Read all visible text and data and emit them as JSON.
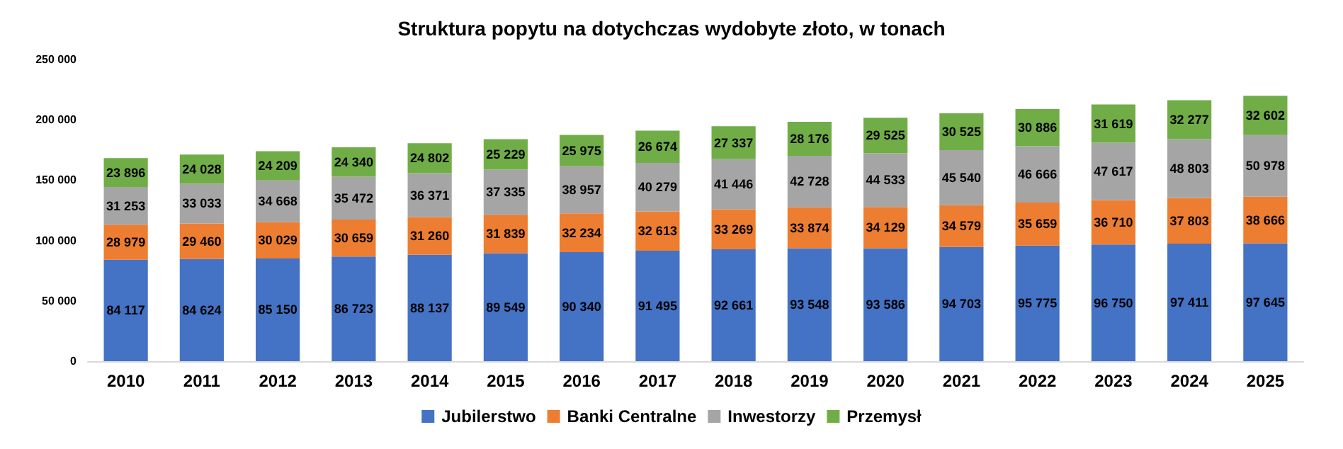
{
  "chart_data": {
    "type": "bar",
    "stacked": true,
    "title": "Struktura popytu na dotychczas wydobyte złoto, w tonach",
    "categories": [
      "2010",
      "2011",
      "2012",
      "2013",
      "2014",
      "2015",
      "2016",
      "2017",
      "2018",
      "2019",
      "2020",
      "2021",
      "2022",
      "2023",
      "2024",
      "2025"
    ],
    "series": [
      {
        "name": "Jubilerstwo",
        "color": "#4472c4",
        "values": [
          84117,
          84624,
          85150,
          86723,
          88137,
          89549,
          90340,
          91495,
          92661,
          93548,
          93586,
          94703,
          95775,
          96750,
          97411,
          97645
        ],
        "value_labels": [
          "84 117",
          "84 624",
          "85 150",
          "86 723",
          "88 137",
          "89 549",
          "90 340",
          "91 495",
          "92 661",
          "93 548",
          "93 586",
          "94 703",
          "95 775",
          "96 750",
          "97 411",
          "97 645"
        ]
      },
      {
        "name": "Banki Centralne",
        "color": "#ed7d31",
        "values": [
          28979,
          29460,
          30029,
          30659,
          31260,
          31839,
          32234,
          32613,
          33269,
          33874,
          34129,
          34579,
          35659,
          36710,
          37803,
          38666
        ],
        "value_labels": [
          "28 979",
          "29 460",
          "30 029",
          "30 659",
          "31 260",
          "31 839",
          "32 234",
          "32 613",
          "33 269",
          "33 874",
          "34 129",
          "34 579",
          "35 659",
          "36 710",
          "37 803",
          "38 666"
        ]
      },
      {
        "name": "Inwestorzy",
        "color": "#a5a5a5",
        "values": [
          31253,
          33033,
          34668,
          35472,
          36371,
          37335,
          38957,
          40279,
          41446,
          42728,
          44533,
          45540,
          46666,
          47617,
          48803,
          50978
        ],
        "value_labels": [
          "31 253",
          "33 033",
          "34 668",
          "35 472",
          "36 371",
          "37 335",
          "38 957",
          "40 279",
          "41 446",
          "42 728",
          "44 533",
          "45 540",
          "46 666",
          "47 617",
          "48 803",
          "50 978"
        ]
      },
      {
        "name": "Przemysł",
        "color": "#70ad47",
        "values": [
          23896,
          24028,
          24209,
          24340,
          24802,
          25229,
          25975,
          26674,
          27337,
          28176,
          29525,
          30525,
          30886,
          31619,
          32277,
          32602
        ],
        "value_labels": [
          "23 896",
          "24 028",
          "24 209",
          "24 340",
          "24 802",
          "25 229",
          "25 975",
          "26 674",
          "27 337",
          "28 176",
          "29 525",
          "30 525",
          "30 886",
          "31 619",
          "32 277",
          "32 602"
        ]
      }
    ],
    "ylim": [
      0,
      250000
    ],
    "yticks": [
      {
        "value": 0,
        "label": "0"
      },
      {
        "value": 50000,
        "label": "50 000"
      },
      {
        "value": 100000,
        "label": "100 000"
      },
      {
        "value": 150000,
        "label": "150 000"
      },
      {
        "value": 200000,
        "label": "200 000"
      },
      {
        "value": 250000,
        "label": "250 000"
      }
    ],
    "grid": false,
    "legend": "bottom"
  }
}
